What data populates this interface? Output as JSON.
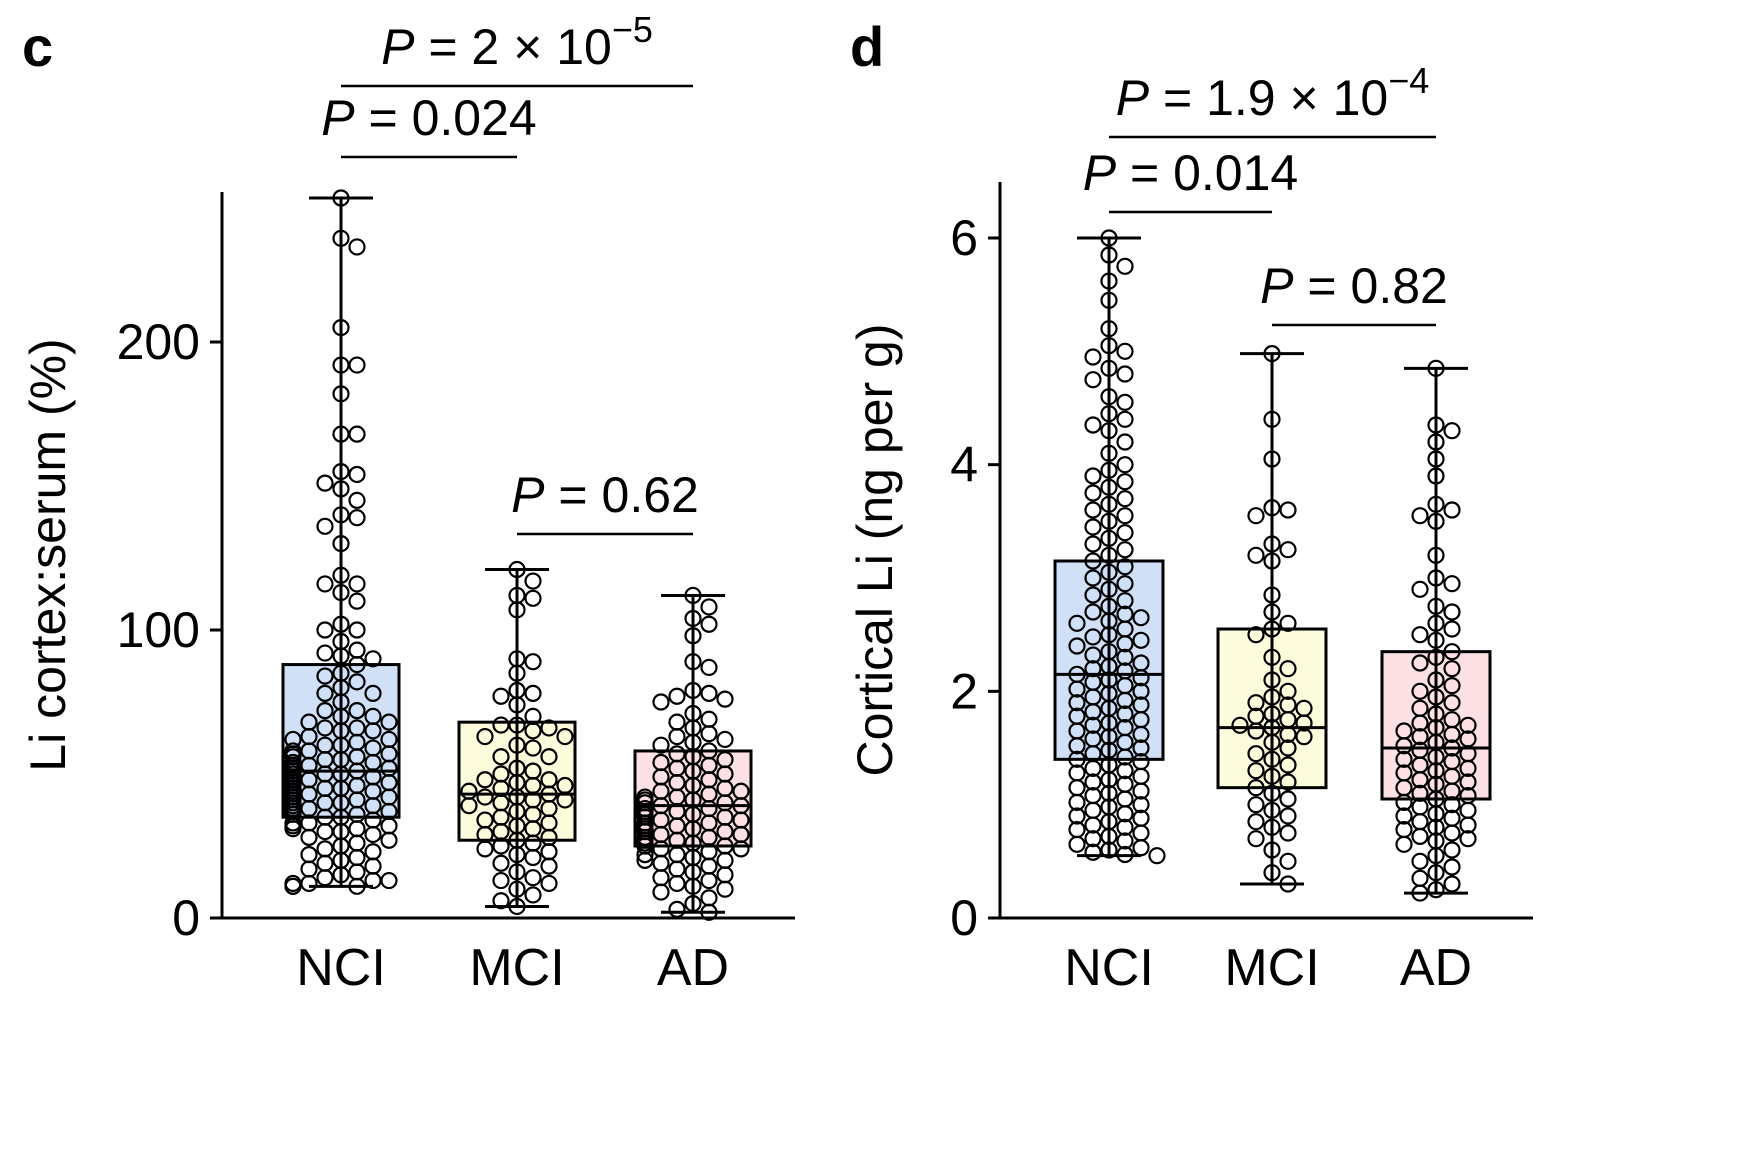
{
  "chart_data": [
    {
      "type": "box",
      "panel_label": "c",
      "ylabel": "Li cortex:serum (%)",
      "xlabel": "",
      "ylim": [
        0,
        260
      ],
      "yticks": [
        0,
        100,
        200
      ],
      "categories": [
        "NCI",
        "MCI",
        "AD"
      ],
      "colors": [
        "#cfe0f7",
        "#fcfbdc",
        "#fbe0e4"
      ],
      "boxes": [
        {
          "name": "NCI",
          "min": 11,
          "q1": 35,
          "median": 51,
          "q3": 88,
          "max": 250,
          "points": [
            250,
            236,
            233,
            205,
            192,
            192,
            182,
            168,
            168,
            155,
            154,
            151,
            149,
            145,
            140,
            139,
            136,
            130,
            119,
            116,
            116,
            113,
            110,
            102,
            100,
            100,
            96,
            93,
            92,
            91,
            90,
            88,
            85,
            84,
            82,
            80,
            78,
            78,
            75,
            72,
            72,
            70,
            70,
            68,
            68,
            66,
            66,
            65,
            65,
            63,
            62,
            62,
            61,
            60,
            60,
            59,
            58,
            58,
            57,
            57,
            56,
            56,
            55,
            55,
            54,
            54,
            54,
            53,
            53,
            52,
            52,
            52,
            51,
            51,
            51,
            50,
            50,
            50,
            49,
            49,
            48,
            48,
            48,
            47,
            47,
            47,
            46,
            46,
            45,
            45,
            45,
            44,
            44,
            44,
            43,
            43,
            42,
            42,
            42,
            41,
            41,
            40,
            40,
            40,
            39,
            39,
            38,
            38,
            37,
            37,
            36,
            36,
            35,
            35,
            34,
            33,
            33,
            32,
            32,
            31,
            31,
            30,
            30,
            29,
            28,
            27,
            26,
            25,
            24,
            23,
            22,
            21,
            20,
            19,
            18,
            17,
            16,
            15,
            14,
            13,
            13,
            12,
            12,
            11,
            11,
            11
          ]
        },
        {
          "name": "MCI",
          "min": 4,
          "q1": 27,
          "median": 43,
          "q3": 68,
          "max": 121,
          "points": [
            121,
            117,
            112,
            111,
            107,
            90,
            89,
            85,
            79,
            78,
            77,
            74,
            70,
            67,
            67,
            66,
            65,
            63,
            63,
            60,
            59,
            56,
            56,
            52,
            51,
            50,
            48,
            48,
            47,
            46,
            46,
            45,
            44,
            43,
            42,
            42,
            41,
            41,
            40,
            39,
            38,
            37,
            36,
            35,
            34,
            33,
            32,
            31,
            30,
            29,
            28,
            27,
            26,
            25,
            24,
            23,
            22,
            21,
            19,
            18,
            16,
            14,
            13,
            12,
            10,
            8,
            6,
            4
          ]
        },
        {
          "name": "AD",
          "min": 2,
          "q1": 25,
          "median": 39,
          "q3": 58,
          "max": 112,
          "points": [
            112,
            108,
            104,
            102,
            98,
            89,
            87,
            79,
            78,
            77,
            76,
            75,
            71,
            69,
            68,
            66,
            64,
            63,
            62,
            61,
            60,
            58,
            57,
            56,
            55,
            54,
            53,
            52,
            51,
            50,
            49,
            48,
            47,
            46,
            45,
            44,
            44,
            43,
            42,
            42,
            41,
            41,
            40,
            40,
            39,
            39,
            38,
            38,
            37,
            37,
            36,
            36,
            35,
            35,
            34,
            34,
            33,
            33,
            32,
            32,
            31,
            31,
            30,
            30,
            29,
            29,
            28,
            28,
            27,
            27,
            26,
            26,
            25,
            25,
            24,
            24,
            23,
            22,
            22,
            21,
            20,
            20,
            19,
            18,
            17,
            16,
            15,
            14,
            13,
            12,
            11,
            10,
            9,
            7,
            5,
            3,
            2
          ]
        }
      ],
      "brackets": [
        {
          "from": "NCI",
          "to": "MCI",
          "label_prefix": "P",
          "label_value": " = 0.024",
          "exponent": "",
          "level": 1
        },
        {
          "from": "NCI",
          "to": "AD",
          "label_prefix": "P",
          "label_value": " = 2 × 10",
          "exponent": "−5",
          "level": 2
        },
        {
          "from": "MCI",
          "to": "AD",
          "label_prefix": "P",
          "label_value": " = 0.62",
          "exponent": "",
          "level": 0
        }
      ]
    },
    {
      "type": "box",
      "panel_label": "d",
      "ylabel": "Cortical Li (ng per g)",
      "xlabel": "",
      "ylim": [
        0,
        6.5
      ],
      "yticks": [
        0,
        2,
        4,
        6
      ],
      "categories": [
        "NCI",
        "MCI",
        "AD"
      ],
      "colors": [
        "#cfe0f7",
        "#fcfbdc",
        "#fbe0e4"
      ],
      "boxes": [
        {
          "name": "NCI",
          "min": 0.55,
          "q1": 1.4,
          "median": 2.15,
          "q3": 3.15,
          "max": 6.0,
          "points": [
            6.0,
            5.85,
            5.75,
            5.62,
            5.45,
            5.2,
            5.05,
            5.0,
            4.95,
            4.85,
            4.8,
            4.75,
            4.6,
            4.55,
            4.45,
            4.4,
            4.35,
            4.3,
            4.2,
            4.1,
            4.0,
            3.95,
            3.9,
            3.85,
            3.8,
            3.75,
            3.7,
            3.65,
            3.6,
            3.55,
            3.5,
            3.45,
            3.4,
            3.35,
            3.3,
            3.25,
            3.2,
            3.15,
            3.1,
            3.05,
            3.0,
            2.95,
            2.9,
            2.85,
            2.8,
            2.75,
            2.7,
            2.68,
            2.65,
            2.62,
            2.6,
            2.55,
            2.5,
            2.48,
            2.45,
            2.42,
            2.4,
            2.35,
            2.32,
            2.3,
            2.25,
            2.22,
            2.2,
            2.18,
            2.15,
            2.12,
            2.1,
            2.08,
            2.05,
            2.02,
            2.0,
            1.98,
            1.95,
            1.92,
            1.9,
            1.88,
            1.85,
            1.82,
            1.8,
            1.78,
            1.75,
            1.72,
            1.7,
            1.68,
            1.65,
            1.62,
            1.6,
            1.58,
            1.55,
            1.52,
            1.5,
            1.48,
            1.45,
            1.42,
            1.4,
            1.38,
            1.35,
            1.32,
            1.3,
            1.28,
            1.25,
            1.22,
            1.2,
            1.18,
            1.15,
            1.12,
            1.1,
            1.08,
            1.05,
            1.02,
            1.0,
            0.98,
            0.95,
            0.92,
            0.9,
            0.88,
            0.85,
            0.82,
            0.8,
            0.78,
            0.75,
            0.72,
            0.7,
            0.68,
            0.65,
            0.62,
            0.6,
            0.58,
            0.56,
            0.55
          ]
        },
        {
          "name": "MCI",
          "min": 0.3,
          "q1": 1.15,
          "median": 1.68,
          "q3": 2.55,
          "max": 4.98,
          "points": [
            4.98,
            4.4,
            4.05,
            3.62,
            3.6,
            3.55,
            3.3,
            3.25,
            3.2,
            3.15,
            2.85,
            2.7,
            2.6,
            2.55,
            2.5,
            2.3,
            2.2,
            2.1,
            2.0,
            1.95,
            1.9,
            1.88,
            1.85,
            1.8,
            1.78,
            1.75,
            1.72,
            1.7,
            1.68,
            1.65,
            1.62,
            1.6,
            1.55,
            1.5,
            1.45,
            1.4,
            1.35,
            1.3,
            1.25,
            1.2,
            1.15,
            1.1,
            1.05,
            1.0,
            0.95,
            0.9,
            0.85,
            0.8,
            0.75,
            0.7,
            0.6,
            0.5,
            0.4,
            0.3
          ]
        },
        {
          "name": "AD",
          "min": 0.22,
          "q1": 1.05,
          "median": 1.5,
          "q3": 2.35,
          "max": 4.85,
          "points": [
            4.85,
            4.35,
            4.3,
            4.2,
            4.05,
            3.9,
            3.65,
            3.6,
            3.55,
            3.5,
            3.2,
            3.0,
            2.95,
            2.9,
            2.75,
            2.7,
            2.6,
            2.55,
            2.5,
            2.45,
            2.35,
            2.3,
            2.25,
            2.2,
            2.1,
            2.05,
            2.0,
            1.95,
            1.9,
            1.85,
            1.8,
            1.75,
            1.72,
            1.7,
            1.68,
            1.65,
            1.62,
            1.6,
            1.58,
            1.55,
            1.52,
            1.5,
            1.48,
            1.45,
            1.42,
            1.4,
            1.38,
            1.35,
            1.32,
            1.3,
            1.28,
            1.25,
            1.22,
            1.2,
            1.18,
            1.15,
            1.12,
            1.1,
            1.08,
            1.05,
            1.02,
            1.0,
            0.98,
            0.95,
            0.92,
            0.9,
            0.88,
            0.85,
            0.82,
            0.8,
            0.78,
            0.75,
            0.72,
            0.7,
            0.68,
            0.65,
            0.6,
            0.55,
            0.5,
            0.45,
            0.4,
            0.35,
            0.3,
            0.25,
            0.22
          ]
        }
      ],
      "brackets": [
        {
          "from": "NCI",
          "to": "MCI",
          "label_prefix": "P",
          "label_value": " = 0.014",
          "exponent": "",
          "level": 1
        },
        {
          "from": "NCI",
          "to": "AD",
          "label_prefix": "P",
          "label_value": " = 1.9 × 10",
          "exponent": "−4",
          "level": 2
        },
        {
          "from": "MCI",
          "to": "AD",
          "label_prefix": "P",
          "label_value": " = 0.82",
          "exponent": "",
          "level": 0
        }
      ]
    }
  ]
}
